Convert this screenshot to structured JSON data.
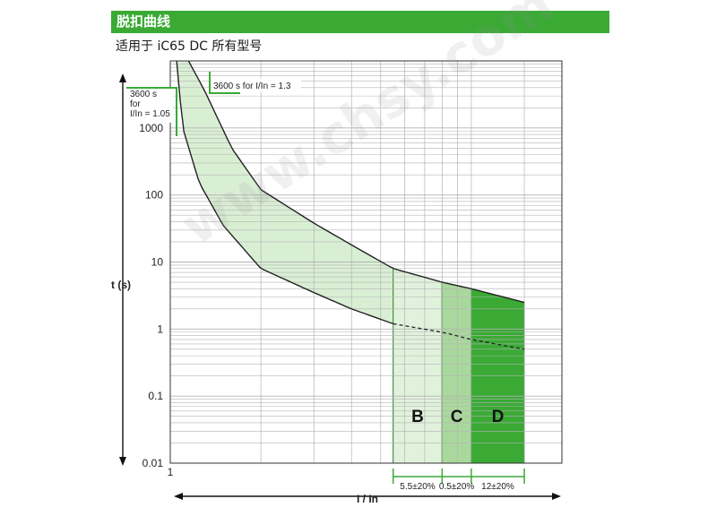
{
  "header": {
    "title": "脱扣曲线"
  },
  "subtitle": "适用于 iC65 DC 所有型号",
  "watermark": "www.chsy.com",
  "colors": {
    "brand_green": "#3aaa35",
    "band_fill": "#d9efd4",
    "zone_b": "#e1f2dc",
    "zone_c": "#a9d89c",
    "zone_d": "#3aaa35",
    "grid": "#b3b3b3",
    "curve": "#222222"
  },
  "chart_data": {
    "type": "line",
    "title": "",
    "xlabel": "I / In",
    "ylabel": "t (s)",
    "xscale": "log",
    "yscale": "log",
    "xlim": [
      1,
      20
    ],
    "ylim": [
      0.01,
      10000
    ],
    "x_ticks": [
      {
        "value": 1,
        "label": "1"
      }
    ],
    "y_ticks": [
      {
        "value": 1000,
        "label": "1000"
      },
      {
        "value": 100,
        "label": "100"
      },
      {
        "value": 10,
        "label": "10"
      },
      {
        "value": 1,
        "label": "1"
      },
      {
        "value": 0.1,
        "label": "0.1"
      },
      {
        "value": 0.01,
        "label": "0.01"
      }
    ],
    "grid": true,
    "series": [
      {
        "role": "upper_limit",
        "points": [
          [
            1.15,
            10000
          ],
          [
            1.3,
            3600
          ],
          [
            1.6,
            500
          ],
          [
            2,
            120
          ],
          [
            3,
            38
          ],
          [
            4,
            18
          ],
          [
            5.5,
            8
          ],
          [
            8,
            5
          ],
          [
            10,
            4
          ],
          [
            15,
            2.5
          ]
        ]
      },
      {
        "role": "lower_limit",
        "points": [
          [
            1.05,
            10000
          ],
          [
            1.1,
            1000
          ],
          [
            1.25,
            150
          ],
          [
            1.5,
            35
          ],
          [
            2,
            8
          ],
          [
            3,
            3.5
          ],
          [
            4,
            2
          ],
          [
            5.5,
            1.2
          ]
        ]
      },
      {
        "role": "instantaneous_boundary",
        "points": [
          [
            5.5,
            1.2
          ],
          [
            8,
            0.9
          ],
          [
            10,
            0.7
          ],
          [
            15,
            0.5
          ]
        ]
      }
    ],
    "zones": [
      {
        "name": "B",
        "x_start": 5.5,
        "x_end": 8
      },
      {
        "name": "C",
        "x_start": 8,
        "x_end": 10
      },
      {
        "name": "D",
        "x_start": 10,
        "x_end": 15
      }
    ],
    "tolerance_labels": [
      "5.5±20%",
      "0.5±20%",
      "12±20%"
    ],
    "annotations": [
      {
        "id": "cold",
        "lines": [
          "3600 s",
          "for",
          "I/In = 1.05"
        ]
      },
      {
        "id": "hot",
        "text": "3600 s for I/In = 1.3"
      }
    ]
  }
}
